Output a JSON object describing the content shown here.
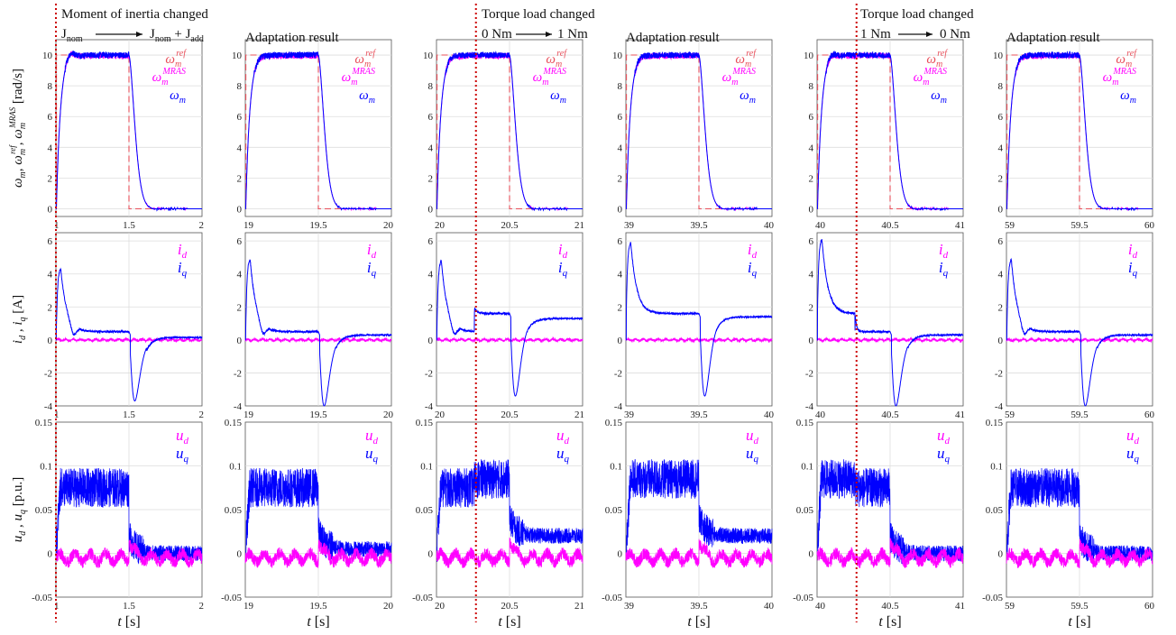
{
  "colors": {
    "ref": "#e8505b",
    "mras": "#ff00ff",
    "meas": "#0000ff",
    "event": "#cc0000",
    "grid": "#dddddd",
    "axis": "#555555"
  },
  "annotations": [
    {
      "title": "Moment of inertia changed",
      "from": "J",
      "from_sub": "nom",
      "to": "J",
      "to_sub": "nom",
      "plus": "+ J",
      "plus_sub": "add"
    },
    {
      "title": "Torque load changed",
      "from": "0 Nm",
      "to": "1 Nm"
    },
    {
      "title": "Torque load changed",
      "from": "1 Nm",
      "to": "0 Nm"
    }
  ],
  "adaptation_label": "Adaptation result",
  "row_labels": {
    "speed": {
      "main": "ω",
      "sub": "m",
      "ref_sup": "ref",
      "mras_sup": "MRAS",
      "unit": "[rad/s]"
    },
    "current": {
      "text": "i",
      "d": "d",
      "q": "q",
      "unit": "[A]"
    },
    "voltage": {
      "text": "u",
      "d": "d",
      "q": "q",
      "unit": "[p.u.]"
    }
  },
  "legends": {
    "speed": [
      {
        "base": "ω",
        "sub": "m",
        "sup": "ref",
        "color": "ref"
      },
      {
        "base": "ω",
        "sub": "m",
        "sup": "MRAS",
        "color": "mras"
      },
      {
        "base": "ω",
        "sub": "m",
        "sup": "",
        "color": "meas"
      }
    ],
    "current": [
      {
        "base": "i",
        "sub": "d",
        "color": "mras"
      },
      {
        "base": "i",
        "sub": "q",
        "color": "meas"
      }
    ],
    "voltage": [
      {
        "base": "u",
        "sub": "d",
        "color": "mras"
      },
      {
        "base": "u",
        "sub": "q",
        "color": "meas"
      }
    ]
  },
  "xlabel": {
    "t": "t",
    "unit": "[s]"
  },
  "chart_data": [
    {
      "type": "line",
      "row": "speed",
      "columns": [
        {
          "xlim": [
            1,
            2
          ],
          "xticks": [
            "1",
            "1.5",
            "2"
          ],
          "event_x": 1.0,
          "step_on": 1.0,
          "step_off": 1.5,
          "plateau": 10.0,
          "overshoot": 0.4
        },
        {
          "xlim": [
            19,
            20
          ],
          "xticks": [
            "19",
            "19.5",
            "20"
          ],
          "step_on": 19.0,
          "step_off": 19.5,
          "plateau": 10.0,
          "overshoot": 0.1
        },
        {
          "xlim": [
            20,
            21
          ],
          "xticks": [
            "20",
            "20.5",
            "21"
          ],
          "event_x": 20.27,
          "step_on": 20.0,
          "step_off": 20.5,
          "plateau": 10.0,
          "overshoot": 0.1
        },
        {
          "xlim": [
            39,
            40
          ],
          "xticks": [
            "39",
            "39.5",
            "40"
          ],
          "step_on": 39.0,
          "step_off": 39.5,
          "plateau": 10.0,
          "overshoot": 0.1
        },
        {
          "xlim": [
            40,
            41
          ],
          "xticks": [
            "40",
            "40.5",
            "41"
          ],
          "event_x": 40.27,
          "step_on": 40.0,
          "step_off": 40.5,
          "plateau": 10.0,
          "overshoot": 0.3
        },
        {
          "xlim": [
            59,
            60
          ],
          "xticks": [
            "59",
            "59.5",
            "60"
          ],
          "step_on": 59.0,
          "step_off": 59.5,
          "plateau": 10.0,
          "overshoot": 0.1
        }
      ],
      "ylim": [
        -0.5,
        11
      ],
      "yticks": [
        0,
        2,
        4,
        6,
        8,
        10
      ]
    },
    {
      "type": "line",
      "row": "current",
      "columns": [
        {
          "xlim": [
            1,
            2
          ],
          "xticks": [
            "1",
            "1.5",
            "2"
          ],
          "peak_on": 4.4,
          "hold": 0.5,
          "hold2": 0.5,
          "dip": -3.7,
          "tail": 0.15
        },
        {
          "xlim": [
            19,
            20
          ],
          "xticks": [
            "19",
            "19.5",
            "20"
          ],
          "peak_on": 5.0,
          "hold": 0.5,
          "hold2": 0.5,
          "dip": -4.0,
          "tail": 0.3
        },
        {
          "xlim": [
            20,
            21
          ],
          "xticks": [
            "20",
            "20.5",
            "21"
          ],
          "peak_on": 4.9,
          "hold": 0.5,
          "hold2": 1.6,
          "dip": -3.4,
          "tail": 1.3
        },
        {
          "xlim": [
            39,
            40
          ],
          "xticks": [
            "39",
            "39.5",
            "40"
          ],
          "peak_on": 6.0,
          "hold": 1.6,
          "hold2": 1.6,
          "dip": -3.4,
          "tail": 1.4
        },
        {
          "xlim": [
            40,
            41
          ],
          "xticks": [
            "40",
            "40.5",
            "41"
          ],
          "peak_on": 6.2,
          "hold": 1.6,
          "hold2": 0.5,
          "dip": -4.0,
          "tail": 0.3
        },
        {
          "xlim": [
            59,
            60
          ],
          "xticks": [
            "59",
            "59.5",
            "60"
          ],
          "peak_on": 5.0,
          "hold": 0.5,
          "hold2": 0.5,
          "dip": -4.0,
          "tail": 0.3
        }
      ],
      "ylim": [
        -4,
        6.5
      ],
      "yticks": [
        -4,
        -2,
        0,
        2,
        4,
        6
      ]
    },
    {
      "type": "line",
      "row": "voltage",
      "columns": [
        {
          "xlim": [
            1,
            2
          ],
          "xticks": [
            "1",
            "1.5",
            "2"
          ],
          "uq_on": 0.075,
          "uq_on2": 0.075,
          "uq_off": 0.0
        },
        {
          "xlim": [
            19,
            20
          ],
          "xticks": [
            "19",
            "19.5",
            "20"
          ],
          "uq_on": 0.075,
          "uq_on2": 0.075,
          "uq_off": 0.005
        },
        {
          "xlim": [
            20,
            21
          ],
          "xticks": [
            "20",
            "20.5",
            "21"
          ],
          "uq_on": 0.075,
          "uq_on2": 0.085,
          "uq_off": 0.02
        },
        {
          "xlim": [
            39,
            40
          ],
          "xticks": [
            "39",
            "39.5",
            "40"
          ],
          "uq_on": 0.085,
          "uq_on2": 0.085,
          "uq_off": 0.02
        },
        {
          "xlim": [
            40,
            41
          ],
          "xticks": [
            "40",
            "40.5",
            "41"
          ],
          "uq_on": 0.085,
          "uq_on2": 0.075,
          "uq_off": 0.0
        },
        {
          "xlim": [
            59,
            60
          ],
          "xticks": [
            "59",
            "59.5",
            "60"
          ],
          "uq_on": 0.075,
          "uq_on2": 0.075,
          "uq_off": 0.0
        }
      ],
      "ylim": [
        -0.05,
        0.15
      ],
      "yticks": [
        -0.05,
        0,
        0.05,
        0.1,
        0.15
      ]
    }
  ]
}
